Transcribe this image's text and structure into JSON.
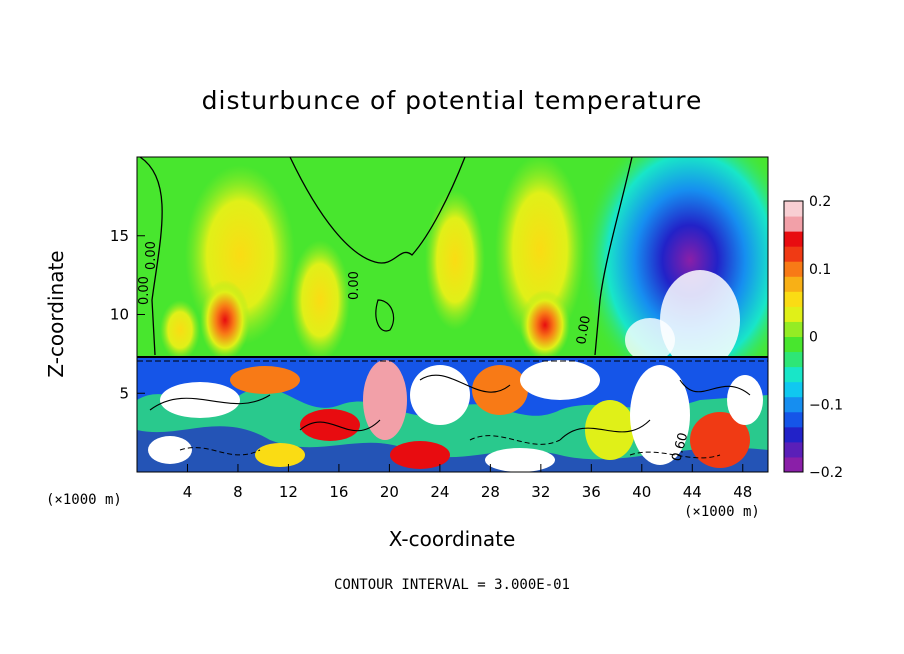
{
  "chart_data": {
    "type": "heatmap",
    "title": "disturbunce of potential temperature",
    "xlabel": "X-coordinate",
    "ylabel": "Z-coordinate",
    "x_unit": "(×1000 m)",
    "y_unit": "(×1000 m)",
    "xlim": [
      0,
      50
    ],
    "ylim": [
      0,
      20
    ],
    "x_ticks": [
      "4",
      "8",
      "12",
      "16",
      "20",
      "24",
      "28",
      "32",
      "36",
      "40",
      "44",
      "48"
    ],
    "x_tick_values": [
      4,
      8,
      12,
      16,
      20,
      24,
      28,
      32,
      36,
      40,
      44,
      48
    ],
    "y_ticks": [
      "5",
      "10",
      "15"
    ],
    "y_tick_values": [
      5,
      10,
      15
    ],
    "colorbar": {
      "min": -0.2,
      "max": 0.2,
      "tick_labels": [
        "0.2",
        "0.1",
        "0",
        "−0.1",
        "−0.2"
      ],
      "tick_values": [
        0.2,
        0.1,
        0,
        -0.1,
        -0.2
      ],
      "colors": [
        "#8a1fa8",
        "#5a1fb8",
        "#2222c8",
        "#1555e8",
        "#168ef0",
        "#10c8f0",
        "#18e6c8",
        "#2ee676",
        "#48e62e",
        "#94ec24",
        "#e0f018",
        "#fadc14",
        "#f8b016",
        "#f87a16",
        "#f03a14",
        "#e80c10",
        "#f2a0a8",
        "#f8cfd3"
      ]
    },
    "contour_labels": [
      "0.00",
      "0.00",
      "0.00",
      "0.00",
      "0.60"
    ],
    "contour_interval": "CONTOUR INTERVAL = 3.000E-01"
  }
}
